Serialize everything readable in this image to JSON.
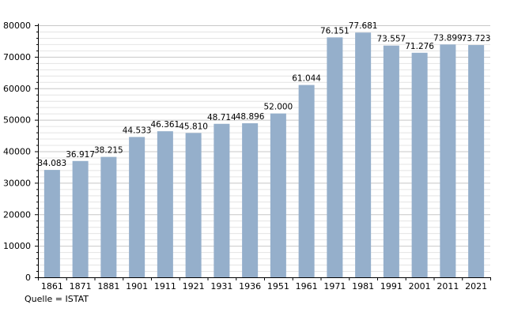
{
  "chart_data": {
    "type": "bar",
    "categories": [
      "1861",
      "1871",
      "1881",
      "1901",
      "1911",
      "1921",
      "1931",
      "1936",
      "1951",
      "1961",
      "1971",
      "1981",
      "1991",
      "2001",
      "2011",
      "2021"
    ],
    "values": [
      34083,
      36917,
      38215,
      44533,
      46361,
      45810,
      48714,
      48896,
      52000,
      61044,
      76151,
      77681,
      73557,
      71276,
      73899,
      73723
    ],
    "value_labels": [
      "34.083",
      "36.917",
      "38.215",
      "44.533",
      "46.361",
      "45.810",
      "48.714",
      "48.896",
      "52.000",
      "61.044",
      "76.151",
      "77.681",
      "73.557",
      "71.276",
      "73.899",
      "73.723"
    ],
    "ylim": [
      0,
      80000
    ],
    "yticks": [
      0,
      10000,
      20000,
      30000,
      40000,
      50000,
      60000,
      70000,
      80000
    ],
    "grid": true,
    "bar_color": "#95afcb",
    "title": "",
    "xlabel": "",
    "ylabel": ""
  },
  "source_note": "Quelle = ISTAT"
}
